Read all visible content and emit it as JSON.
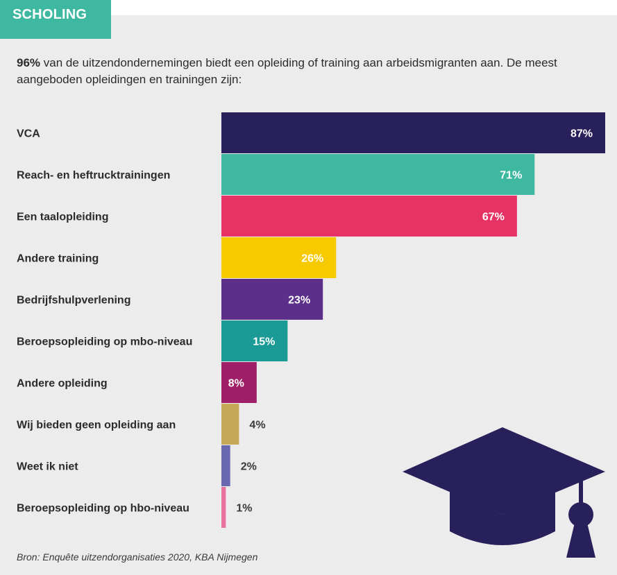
{
  "header": {
    "title": "SCHOLING"
  },
  "intro": {
    "bold": "96%",
    "text": " van de uitzendondernemingen biedt een opleiding of training aan arbeidsmigranten aan. De meest aangeboden opleidingen en trainingen zijn:"
  },
  "source": "Bron: Enquête uitzendorganisaties 2020, KBA Nijmegen",
  "icons": {
    "graduation_cap": "graduation-cap-icon"
  },
  "chart_data": {
    "type": "bar",
    "orientation": "horizontal",
    "categories": [
      "VCA",
      "Reach- en heftrucktrainingen",
      "Een taalopleiding",
      "Andere training",
      "Bedrijfshulpverlening",
      "Beroepsopleiding op mbo-niveau",
      "Andere opleiding",
      "Wij bieden geen opleiding aan",
      "Weet ik niet",
      "Beroepsopleiding op hbo-niveau"
    ],
    "values": [
      87,
      71,
      67,
      26,
      23,
      15,
      8,
      4,
      2,
      1
    ],
    "value_labels": [
      "87%",
      "71%",
      "67%",
      "26%",
      "23%",
      "15%",
      "8%",
      "4%",
      "2%",
      "1%"
    ],
    "colors": [
      "#28205a",
      "#3fb8a2",
      "#e63264",
      "#f6c900",
      "#5b2f8a",
      "#1b9a96",
      "#a01f69",
      "#c6aa5a",
      "#6a68b0",
      "#e8739e"
    ],
    "xlim": [
      0,
      87
    ],
    "unit": "%"
  }
}
